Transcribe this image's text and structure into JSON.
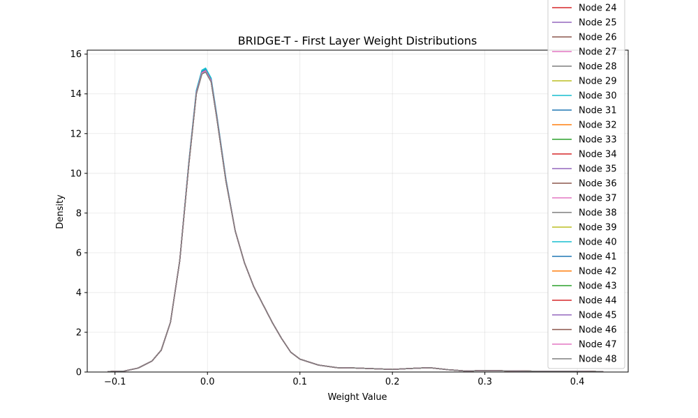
{
  "chart_data": {
    "type": "line",
    "title": "BRIDGE-T - First Layer Weight Distributions",
    "xlabel": "Weight Value",
    "ylabel": "Density",
    "xlim": [
      -0.13,
      0.455
    ],
    "ylim": [
      0,
      16.2
    ],
    "xticks": [
      -0.1,
      0.0,
      0.1,
      0.2,
      0.3,
      0.4
    ],
    "xtick_labels": [
      "−0.1",
      "0.0",
      "0.1",
      "0.2",
      "0.3",
      "0.4"
    ],
    "yticks": [
      0,
      2,
      4,
      6,
      8,
      10,
      12,
      14,
      16
    ],
    "ytick_labels": [
      "0",
      "2",
      "4",
      "6",
      "8",
      "10",
      "12",
      "14",
      "16"
    ],
    "grid": true,
    "legend_position": "top-right",
    "x": [
      -0.108,
      -0.09,
      -0.075,
      -0.06,
      -0.05,
      -0.04,
      -0.03,
      -0.02,
      -0.012,
      -0.006,
      -0.002,
      0.004,
      0.01,
      0.02,
      0.03,
      0.04,
      0.05,
      0.06,
      0.07,
      0.08,
      0.09,
      0.1,
      0.12,
      0.14,
      0.16,
      0.18,
      0.2,
      0.22,
      0.24,
      0.26,
      0.28,
      0.3,
      0.32,
      0.34,
      0.36,
      0.38,
      0.4,
      0.428
    ],
    "base_curve": [
      0.02,
      0.05,
      0.2,
      0.55,
      1.1,
      2.5,
      5.6,
      10.5,
      14.0,
      15.0,
      15.1,
      14.6,
      12.8,
      9.6,
      7.1,
      5.5,
      4.3,
      3.4,
      2.5,
      1.7,
      1.0,
      0.65,
      0.35,
      0.22,
      0.2,
      0.17,
      0.13,
      0.18,
      0.22,
      0.12,
      0.05,
      0.08,
      0.06,
      0.05,
      0.04,
      0.04,
      0.04,
      0.02
    ],
    "series": [
      {
        "name": "Node 24",
        "color": "#d62728",
        "peak": 15.15
      },
      {
        "name": "Node 25",
        "color": "#9467bd",
        "peak": 15.18
      },
      {
        "name": "Node 26",
        "color": "#8c564b",
        "peak": 15.12
      },
      {
        "name": "Node 27",
        "color": "#e377c2",
        "peak": 15.2
      },
      {
        "name": "Node 28",
        "color": "#7f7f7f",
        "peak": 15.1
      },
      {
        "name": "Node 29",
        "color": "#bcbd22",
        "peak": 15.16
      },
      {
        "name": "Node 30",
        "color": "#17becf",
        "peak": 15.3
      },
      {
        "name": "Node 31",
        "color": "#1f77b4",
        "peak": 15.2
      },
      {
        "name": "Node 32",
        "color": "#ff7f0e",
        "peak": 15.14
      },
      {
        "name": "Node 33",
        "color": "#2ca02c",
        "peak": 15.17
      },
      {
        "name": "Node 34",
        "color": "#d62728",
        "peak": 15.12
      },
      {
        "name": "Node 35",
        "color": "#9467bd",
        "peak": 15.19
      },
      {
        "name": "Node 36",
        "color": "#8c564b",
        "peak": 15.13
      },
      {
        "name": "Node 37",
        "color": "#e377c2",
        "peak": 15.18
      },
      {
        "name": "Node 38",
        "color": "#7f7f7f",
        "peak": 15.11
      },
      {
        "name": "Node 39",
        "color": "#bcbd22",
        "peak": 15.16
      },
      {
        "name": "Node 40",
        "color": "#17becf",
        "peak": 15.25
      },
      {
        "name": "Node 41",
        "color": "#1f77b4",
        "peak": 15.2
      },
      {
        "name": "Node 42",
        "color": "#ff7f0e",
        "peak": 15.15
      },
      {
        "name": "Node 43",
        "color": "#2ca02c",
        "peak": 15.17
      },
      {
        "name": "Node 44",
        "color": "#d62728",
        "peak": 15.12
      },
      {
        "name": "Node 45",
        "color": "#9467bd",
        "peak": 15.18
      },
      {
        "name": "Node 46",
        "color": "#8c564b",
        "peak": 15.14
      },
      {
        "name": "Node 47",
        "color": "#e377c2",
        "peak": 15.16
      },
      {
        "name": "Node 48",
        "color": "#7f7f7f",
        "peak": 15.1
      }
    ]
  }
}
